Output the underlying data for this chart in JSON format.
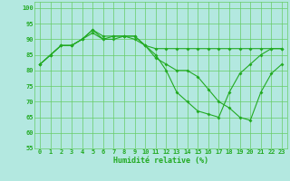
{
  "background_color": "#b3e8e0",
  "grid_color": "#66cc66",
  "line_color": "#22aa22",
  "xlabel": "Humidité relative (%)",
  "xlim": [
    -0.5,
    23.5
  ],
  "ylim": [
    55,
    102
  ],
  "yticks": [
    55,
    60,
    65,
    70,
    75,
    80,
    85,
    90,
    95,
    100
  ],
  "xticks": [
    0,
    1,
    2,
    3,
    4,
    5,
    6,
    7,
    8,
    9,
    10,
    11,
    12,
    13,
    14,
    15,
    16,
    17,
    18,
    19,
    20,
    21,
    22,
    23
  ],
  "series": [
    [
      82,
      85,
      88,
      88,
      90,
      92,
      90,
      91,
      91,
      91,
      88,
      87,
      87,
      87,
      87,
      87,
      87,
      87,
      87,
      87,
      87,
      87,
      87,
      87
    ],
    [
      82,
      85,
      88,
      88,
      90,
      93,
      91,
      91,
      91,
      91,
      88,
      85,
      80,
      73,
      70,
      67,
      66,
      65,
      73,
      79,
      82,
      85,
      87,
      87
    ],
    [
      82,
      85,
      88,
      88,
      90,
      93,
      90,
      90,
      91,
      90,
      88,
      84,
      82,
      80,
      80,
      78,
      74,
      70,
      68,
      65,
      64,
      73,
      79,
      82
    ]
  ],
  "tick_fontsize": 5.0,
  "xlabel_fontsize": 6.0
}
